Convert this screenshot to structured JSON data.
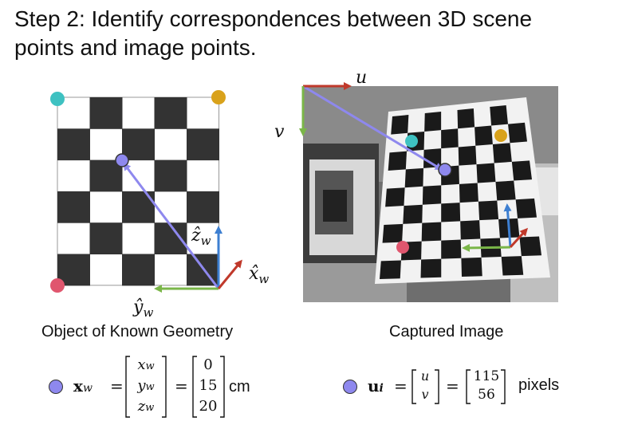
{
  "title_line1": "Step 2: Identify correspondences between 3D scene",
  "title_line2": "points and image points.",
  "left_caption": "Object of Known Geometry",
  "right_caption": "Captured Image",
  "axis_labels": {
    "z_w": "ẑ",
    "z_w_sub": "w",
    "x_w": "x̂",
    "x_w_sub": "w",
    "y_w": "ŷ",
    "y_w_sub": "w",
    "u": "u",
    "v": "v"
  },
  "world_point": {
    "lhs_symbol": "x",
    "lhs_sub": "w",
    "vector_symbols": [
      "x",
      "y",
      "z"
    ],
    "vector_subs": [
      "w",
      "w",
      "w"
    ],
    "values": [
      "0",
      "15",
      "20"
    ],
    "unit": "cm"
  },
  "image_point": {
    "lhs_symbol": "u",
    "lhs_sub": "i",
    "vector_symbols": [
      "u",
      "v"
    ],
    "values": [
      "115",
      "56"
    ],
    "unit": "pixels"
  },
  "colors": {
    "teal": "#3ec1c1",
    "gold": "#d9a21b",
    "pink": "#e0566e",
    "purple": "#8e88ee",
    "red_arrow": "#c0392b",
    "green_arrow": "#7ab648",
    "blue_arrow": "#3d7fd1"
  }
}
